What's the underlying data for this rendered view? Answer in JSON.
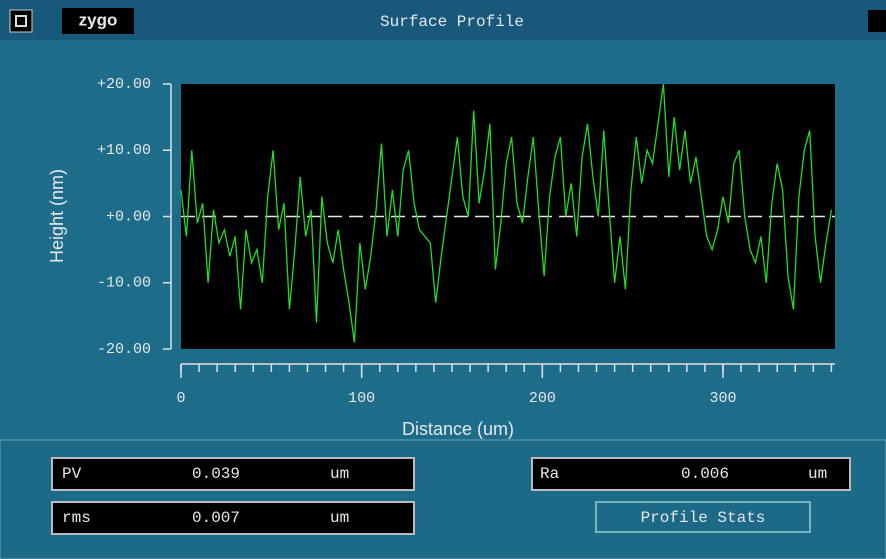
{
  "window": {
    "logo": "zygo",
    "title": "Surface Profile"
  },
  "chart_data": {
    "type": "line",
    "x_label": "Distance (um)",
    "y_label": "Height (nm)",
    "xlim": [
      0,
      362
    ],
    "ylim": [
      -20,
      20
    ],
    "xticks": [
      0,
      100,
      200,
      300
    ],
    "xminor_step": 10,
    "yticks": [
      {
        "value": 20,
        "label": "+20.00"
      },
      {
        "value": 10,
        "label": "+10.00"
      },
      {
        "value": 0,
        "label": "+0.00"
      },
      {
        "value": -10,
        "label": "-10.00"
      },
      {
        "value": -20,
        "label": "-20.00"
      }
    ],
    "zero_line": true,
    "series": [
      {
        "color": "#22dd22",
        "x": [
          0,
          3,
          6,
          9,
          12,
          15,
          18,
          21,
          24,
          27,
          30,
          33,
          36,
          39,
          42,
          45,
          48,
          51,
          54,
          57,
          60,
          63,
          66,
          69,
          72,
          75,
          78,
          81,
          84,
          87,
          90,
          93,
          96,
          99,
          102,
          105,
          108,
          111,
          114,
          117,
          120,
          123,
          126,
          129,
          132,
          135,
          138,
          141,
          144,
          147,
          150,
          153,
          156,
          159,
          162,
          165,
          168,
          171,
          174,
          177,
          180,
          183,
          186,
          189,
          192,
          195,
          198,
          201,
          204,
          207,
          210,
          213,
          216,
          219,
          222,
          225,
          228,
          231,
          234,
          237,
          240,
          243,
          246,
          249,
          252,
          255,
          258,
          261,
          264,
          267,
          270,
          273,
          276,
          279,
          282,
          285,
          288,
          291,
          294,
          297,
          300,
          303,
          306,
          309,
          312,
          315,
          318,
          321,
          324,
          327,
          330,
          333,
          336,
          339,
          342,
          345,
          348,
          351,
          354,
          357,
          360
        ],
        "values": [
          4,
          -3,
          10,
          -1,
          2,
          -10,
          1,
          -4,
          -2,
          -6,
          -3,
          -14,
          -2,
          -7,
          -5,
          -10,
          3,
          10,
          -2,
          2,
          -14,
          -5,
          6,
          -3,
          1,
          -16,
          3,
          -4,
          -7,
          -2,
          -8,
          -13,
          -19,
          -4,
          -11,
          -6,
          1,
          11,
          -3,
          4,
          -3,
          7,
          10,
          2,
          -2,
          -3,
          -4,
          -13,
          -6,
          0,
          6,
          12,
          3,
          0,
          16,
          2,
          7,
          14,
          -8,
          -1,
          8,
          12,
          2,
          -1,
          6,
          12,
          1,
          -9,
          3,
          9,
          12,
          0,
          5,
          -3,
          9,
          14,
          6,
          0,
          13,
          1,
          -10,
          -3,
          -11,
          4,
          12,
          5,
          10,
          8,
          14,
          20,
          6,
          15,
          7,
          13,
          5,
          9,
          3,
          -3,
          -5,
          -2,
          3,
          -1,
          8,
          10,
          0,
          -5,
          -7,
          -3,
          -10,
          2,
          8,
          4,
          -9,
          -14,
          3,
          10,
          13,
          -3,
          -10,
          -4,
          1
        ]
      }
    ]
  },
  "stats": {
    "pv": {
      "name": "PV",
      "value": "0.039",
      "unit": "um"
    },
    "rms": {
      "name": "rms",
      "value": "0.007",
      "unit": "um"
    },
    "ra": {
      "name": "Ra",
      "value": "0.006",
      "unit": "um"
    },
    "button": "Profile Stats"
  }
}
